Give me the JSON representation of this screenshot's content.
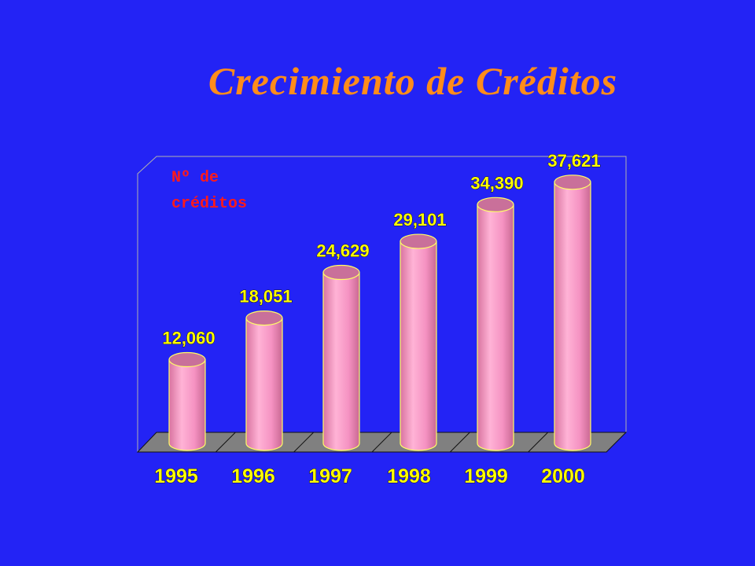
{
  "title": "Crecimiento de Créditos",
  "colors": {
    "background": "#2323f5",
    "title": "#ff8c1a",
    "bar_fill": "#f592c2",
    "bar_top": "#c9709a",
    "bar_outline": "#ffff66",
    "floor": "#808080",
    "value_labels": "#ffff00",
    "category_labels": "#ffff00",
    "ylabel": "#ff1a1a"
  },
  "chart_data": {
    "type": "bar",
    "title": "Crecimiento de Créditos",
    "ylabel": "Nº de créditos",
    "ylabel_lines": [
      "Nº de",
      "créditos"
    ],
    "xlabel": "",
    "categories": [
      "1995",
      "1996",
      "1997",
      "1998",
      "1999",
      "2000"
    ],
    "values": [
      12060,
      18051,
      24629,
      29101,
      34390,
      37621
    ],
    "value_labels": [
      "12,060",
      "18,051",
      "24,629",
      "29,101",
      "34,390",
      "37,621"
    ],
    "style": "3d-cylinder",
    "grid": false,
    "legend": "none"
  }
}
